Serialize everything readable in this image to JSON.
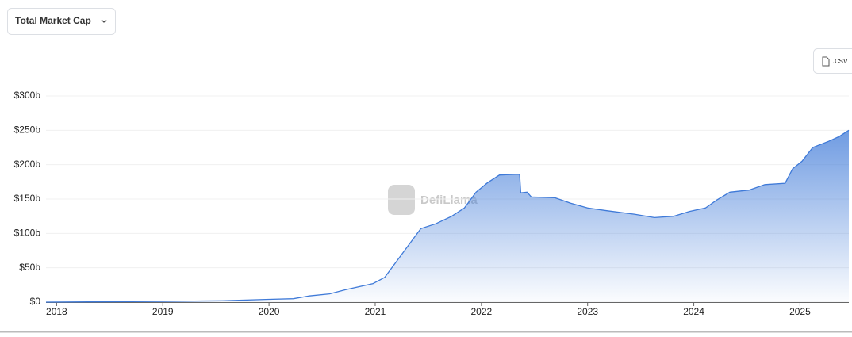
{
  "metric_selector": "Total Market Cap",
  "csv_button": ".csv",
  "watermark": "DefiLlama",
  "chart_data": {
    "type": "area",
    "x": [
      2017.9,
      2019.0,
      2019.56,
      2020.0,
      2020.23,
      2020.38,
      2020.57,
      2020.72,
      2020.98,
      2021.09,
      2021.2,
      2021.31,
      2021.43,
      2021.57,
      2021.72,
      2021.84,
      2021.95,
      2022.06,
      2022.17,
      2022.32,
      2022.36,
      2022.37,
      2022.43,
      2022.47,
      2022.69,
      2022.84,
      2023.0,
      2023.18,
      2023.44,
      2023.63,
      2023.81,
      2023.96,
      2024.11,
      2024.22,
      2024.34,
      2024.52,
      2024.67,
      2024.86,
      2024.93,
      2025.02,
      2025.12,
      2025.27,
      2025.37,
      2025.46
    ],
    "values": [
      0,
      1,
      2,
      4,
      5,
      9,
      12,
      18,
      27,
      36,
      59,
      82,
      107,
      114,
      125,
      137,
      160,
      174,
      185,
      186,
      186,
      159,
      160,
      153,
      152,
      144,
      137,
      133,
      128,
      123,
      125,
      132,
      137,
      149,
      160,
      163,
      171,
      173,
      194,
      205,
      225,
      234,
      241,
      250
    ],
    "color": "#3f7ad8",
    "xlim": [
      2017.9,
      2025.46
    ],
    "xticks": [
      2018,
      2019,
      2020,
      2021,
      2022,
      2023,
      2024,
      2025
    ],
    "ylim": [
      0,
      300
    ],
    "yticks": [
      {
        "value": 0,
        "label": "$0"
      },
      {
        "value": 50,
        "label": "$50b"
      },
      {
        "value": 100,
        "label": "$100b"
      },
      {
        "value": 150,
        "label": "$150b"
      },
      {
        "value": 200,
        "label": "$200b"
      },
      {
        "value": 250,
        "label": "$250b"
      },
      {
        "value": 300,
        "label": "$300b"
      }
    ],
    "grid": true
  }
}
